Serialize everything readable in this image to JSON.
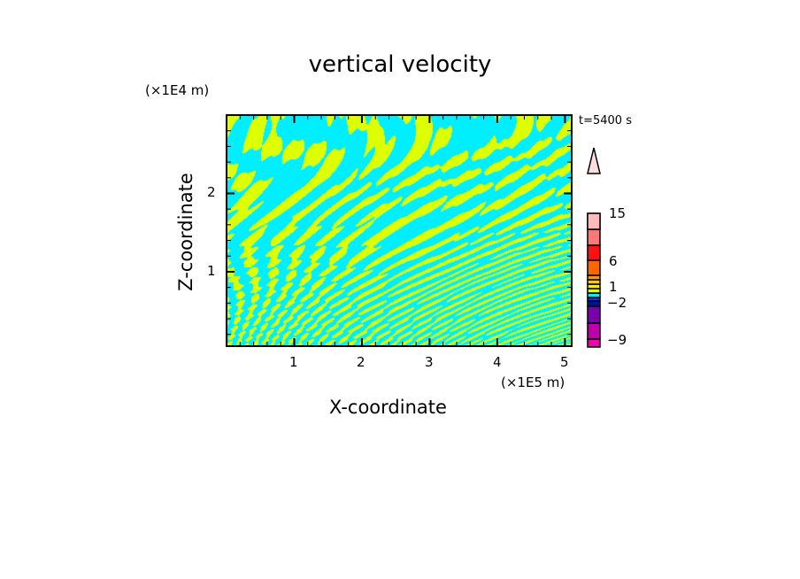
{
  "chart_data": {
    "type": "heatmap",
    "title": "vertical velocity",
    "xlabel": "X-coordinate",
    "ylabel": "Z-coordinate",
    "x_unit": "(×1E5 m)",
    "y_unit": "(×1E4 m)",
    "annotation": "t=5400 s",
    "xlim": [
      0,
      5.1
    ],
    "ylim": [
      0.05,
      3.0
    ],
    "x_ticks": [
      "1",
      "2",
      "3",
      "4",
      "5"
    ],
    "y_ticks": [
      "1",
      "2"
    ],
    "colorbar": {
      "tick_labels": [
        "15",
        "6",
        "1",
        "−2",
        "−9"
      ],
      "colors_bottom_to_top": [
        "#ee00aa",
        "#bb00aa",
        "#7700aa",
        "#001199",
        "#0033ee",
        "#00eeff",
        "#ddff00",
        "#ffee00",
        "#ffcc00",
        "#ff9900",
        "#ff6600",
        "#ff1111",
        "#ff7777",
        "#ffbbbb",
        "#ffdddd"
      ]
    },
    "dominant_colors": {
      "updraft": "#ddff00",
      "downdraft": "#00eeff"
    }
  }
}
